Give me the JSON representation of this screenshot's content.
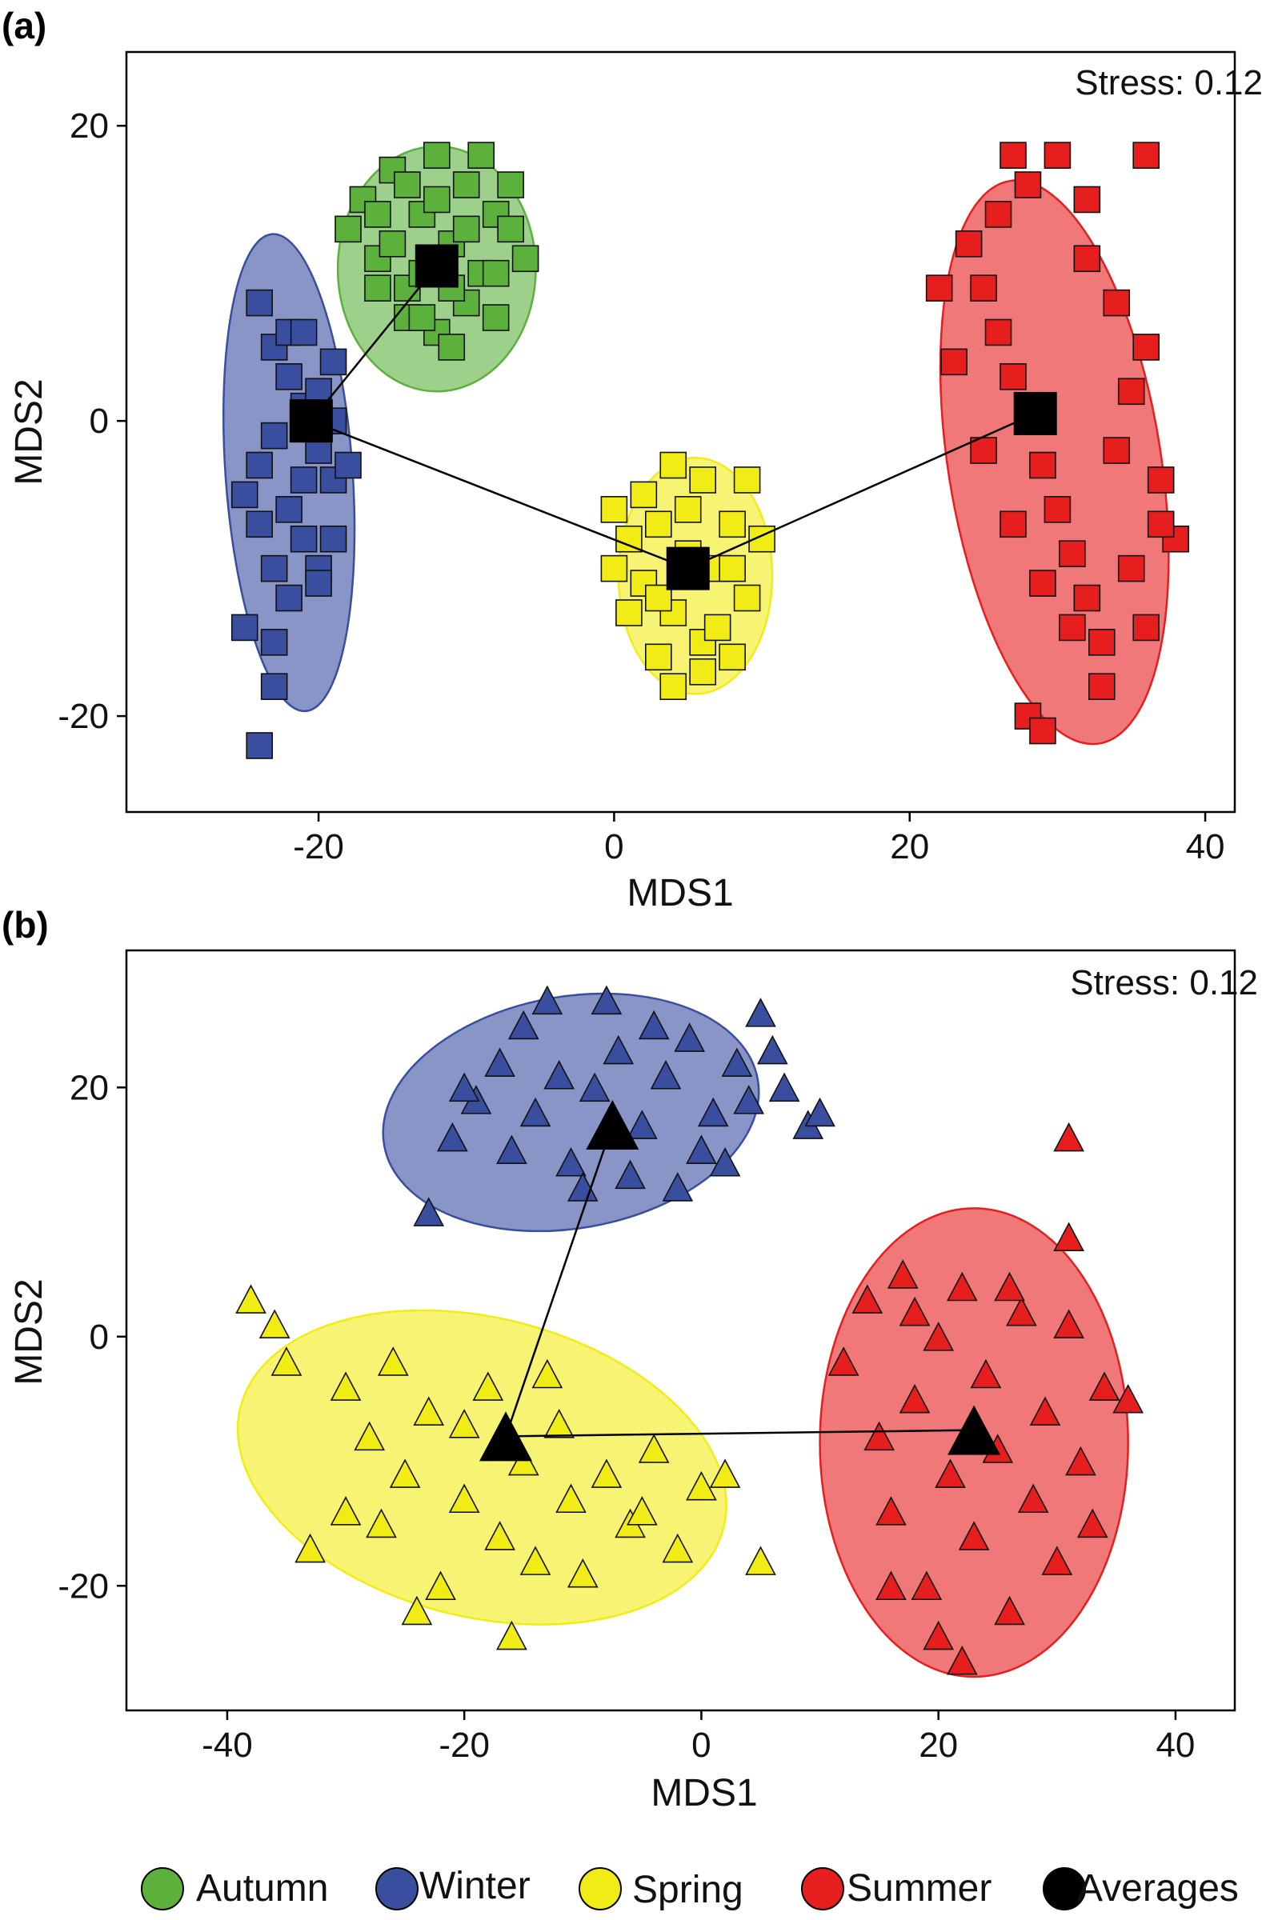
{
  "chart_data": [
    {
      "panel": "(a)",
      "type": "scatter",
      "marker": "square",
      "stress_text": "Stress: 0.12",
      "xlabel": "MDS1",
      "ylabel": "MDS2",
      "xlim": [
        -33,
        42
      ],
      "ylim": [
        -26.5,
        25
      ],
      "xticks": [
        -20,
        0,
        20,
        40
      ],
      "yticks": [
        -20,
        0,
        20
      ],
      "series": [
        {
          "name": "Autumn",
          "color": "#5cb03c",
          "ellipse": {
            "cx": -12,
            "cy": 10.3,
            "rx": 6.7,
            "ry": 8.3,
            "angle": 0
          },
          "points": [
            [
              -18,
              13
            ],
            [
              -17,
              15
            ],
            [
              -16,
              11
            ],
            [
              -15,
              17
            ],
            [
              -14,
              9
            ],
            [
              -13,
              14
            ],
            [
              -12,
              18
            ],
            [
              -11,
              12
            ],
            [
              -10,
              16
            ],
            [
              -9,
              10
            ],
            [
              -8,
              14
            ],
            [
              -7,
              13
            ],
            [
              -6,
              11
            ],
            [
              -14,
              7
            ],
            [
              -12,
              6
            ],
            [
              -10,
              8
            ],
            [
              -8,
              7
            ],
            [
              -16,
              14
            ],
            [
              -9,
              18
            ],
            [
              -11,
              5
            ],
            [
              -13,
              10
            ],
            [
              -15,
              12
            ],
            [
              -7,
              16
            ],
            [
              -10,
              13
            ],
            [
              -12,
              15
            ],
            [
              -14,
              16
            ],
            [
              -16,
              9
            ],
            [
              -8,
              10
            ],
            [
              -11,
              9
            ],
            [
              -13,
              7
            ]
          ]
        },
        {
          "name": "Winter",
          "color": "#3a4ea0",
          "ellipse": {
            "cx": -22,
            "cy": -3.5,
            "rx": 4.3,
            "ry": 16.2,
            "angle": -4
          },
          "points": [
            [
              -24,
              8
            ],
            [
              -23,
              5
            ],
            [
              -22,
              3
            ],
            [
              -21,
              1
            ],
            [
              -20,
              -2
            ],
            [
              -19,
              -4
            ],
            [
              -23,
              -1
            ],
            [
              -22,
              -6
            ],
            [
              -21,
              -8
            ],
            [
              -20,
              -10
            ],
            [
              -24,
              -3
            ],
            [
              -23,
              -10
            ],
            [
              -22,
              -12
            ],
            [
              -21,
              -4
            ],
            [
              -20,
              2
            ],
            [
              -19,
              4
            ],
            [
              -25,
              -5
            ],
            [
              -24,
              -7
            ],
            [
              -18,
              -3
            ],
            [
              -19,
              -8
            ],
            [
              -22,
              6
            ],
            [
              -25,
              -14
            ],
            [
              -23,
              -15
            ],
            [
              -23,
              -18
            ],
            [
              -24,
              -22
            ],
            [
              -20,
              -11
            ],
            [
              -21,
              6
            ],
            [
              -19,
              0
            ]
          ]
        },
        {
          "name": "Spring",
          "color": "#f2ec16",
          "ellipse": {
            "cx": 5.5,
            "cy": -10.5,
            "rx": 5.2,
            "ry": 8,
            "angle": 0
          },
          "points": [
            [
              0,
              -6
            ],
            [
              1,
              -8
            ],
            [
              2,
              -11
            ],
            [
              3,
              -7
            ],
            [
              4,
              -13
            ],
            [
              5,
              -9
            ],
            [
              6,
              -15
            ],
            [
              7,
              -10
            ],
            [
              8,
              -7
            ],
            [
              9,
              -12
            ],
            [
              10,
              -8
            ],
            [
              3,
              -16
            ],
            [
              4,
              -18
            ],
            [
              6,
              -17
            ],
            [
              1,
              -13
            ],
            [
              2,
              -5
            ],
            [
              7,
              -14
            ],
            [
              8,
              -16
            ],
            [
              5,
              -6
            ],
            [
              9,
              -4
            ],
            [
              0,
              -10
            ],
            [
              4,
              -3
            ],
            [
              6,
              -4
            ],
            [
              3,
              -12
            ],
            [
              8,
              -10
            ]
          ]
        },
        {
          "name": "Summer",
          "color": "#e61e1e",
          "ellipse": {
            "cx": 29.8,
            "cy": -2.8,
            "rx": 7.2,
            "ry": 19.3,
            "angle": -9
          },
          "points": [
            [
              24,
              12
            ],
            [
              25,
              9
            ],
            [
              26,
              6
            ],
            [
              27,
              3
            ],
            [
              28,
              0
            ],
            [
              29,
              -3
            ],
            [
              30,
              -6
            ],
            [
              31,
              -9
            ],
            [
              32,
              -12
            ],
            [
              33,
              -15
            ],
            [
              34,
              -2
            ],
            [
              35,
              2
            ],
            [
              36,
              5
            ],
            [
              37,
              -4
            ],
            [
              38,
              -8
            ],
            [
              26,
              14
            ],
            [
              28,
              16
            ],
            [
              30,
              18
            ],
            [
              32,
              11
            ],
            [
              34,
              8
            ],
            [
              25,
              -2
            ],
            [
              27,
              -7
            ],
            [
              29,
              -11
            ],
            [
              31,
              -14
            ],
            [
              33,
              -18
            ],
            [
              28,
              -20
            ],
            [
              29,
              -21
            ],
            [
              36,
              -14
            ],
            [
              22,
              9
            ],
            [
              23,
              4
            ],
            [
              35,
              -10
            ],
            [
              27,
              18
            ],
            [
              36,
              18
            ],
            [
              32,
              15
            ],
            [
              37,
              -7
            ]
          ]
        }
      ],
      "averages": {
        "name": "Averages",
        "color": "#000000",
        "points": [
          [
            -12,
            10.5
          ],
          [
            -20.5,
            0
          ],
          [
            5,
            -10
          ],
          [
            28.5,
            0.5
          ]
        ],
        "links": [
          [
            0,
            1
          ],
          [
            1,
            2
          ],
          [
            2,
            3
          ]
        ]
      }
    },
    {
      "panel": "(b)",
      "type": "scatter",
      "marker": "triangle",
      "stress_text": "Stress: 0.12",
      "xlabel": "MDS1",
      "ylabel": "MDS2",
      "xlim": [
        -48.5,
        45
      ],
      "ylim": [
        -30,
        31
      ],
      "xticks": [
        -40,
        -20,
        0,
        20,
        40
      ],
      "yticks": [
        -20,
        0,
        20
      ],
      "series": [
        {
          "name": "Winter",
          "color": "#3a4ea0",
          "ellipse": {
            "cx": -11,
            "cy": 18,
            "rx": 16,
            "ry": 9.3,
            "angle": -10
          },
          "points": [
            [
              -23,
              10
            ],
            [
              -21,
              16
            ],
            [
              -19,
              19
            ],
            [
              -17,
              22
            ],
            [
              -15,
              25
            ],
            [
              -13,
              27
            ],
            [
              -11,
              14
            ],
            [
              -9,
              20
            ],
            [
              -7,
              23
            ],
            [
              -5,
              17
            ],
            [
              -3,
              21
            ],
            [
              -1,
              24
            ],
            [
              1,
              18
            ],
            [
              3,
              22
            ],
            [
              5,
              26
            ],
            [
              7,
              20
            ],
            [
              9,
              17
            ],
            [
              10,
              18
            ],
            [
              -20,
              20
            ],
            [
              -16,
              15
            ],
            [
              -12,
              21
            ],
            [
              -8,
              27
            ],
            [
              -4,
              25
            ],
            [
              0,
              15
            ],
            [
              4,
              19
            ],
            [
              6,
              23
            ],
            [
              -14,
              18
            ],
            [
              -10,
              12
            ],
            [
              -6,
              13
            ],
            [
              -2,
              12
            ],
            [
              2,
              14
            ]
          ]
        },
        {
          "name": "Spring",
          "color": "#f2ec16",
          "ellipse": {
            "cx": -18.5,
            "cy": -10.5,
            "rx": 21,
            "ry": 12,
            "angle": 14
          },
          "points": [
            [
              -38,
              3
            ],
            [
              -36,
              1
            ],
            [
              -35,
              -2
            ],
            [
              -33,
              -17
            ],
            [
              -30,
              -4
            ],
            [
              -28,
              -8
            ],
            [
              -27,
              -15
            ],
            [
              -25,
              -11
            ],
            [
              -23,
              -6
            ],
            [
              -22,
              -20
            ],
            [
              -20,
              -13
            ],
            [
              -18,
              -4
            ],
            [
              -17,
              -16
            ],
            [
              -15,
              -10
            ],
            [
              -14,
              -18
            ],
            [
              -12,
              -7
            ],
            [
              -11,
              -13
            ],
            [
              -10,
              -19
            ],
            [
              -8,
              -11
            ],
            [
              -6,
              -15
            ],
            [
              -4,
              -9
            ],
            [
              -2,
              -17
            ],
            [
              0,
              -12
            ],
            [
              2,
              -11
            ],
            [
              5,
              -18
            ],
            [
              -16,
              -24
            ],
            [
              -24,
              -22
            ],
            [
              -30,
              -14
            ],
            [
              -26,
              -2
            ],
            [
              -20,
              -7
            ],
            [
              -13,
              -3
            ],
            [
              -5,
              -14
            ]
          ]
        },
        {
          "name": "Summer",
          "color": "#e61e1e",
          "ellipse": {
            "cx": 23,
            "cy": -8.5,
            "rx": 13,
            "ry": 18.8,
            "angle": 0
          },
          "points": [
            [
              12,
              -2
            ],
            [
              14,
              3
            ],
            [
              15,
              -8
            ],
            [
              16,
              -14
            ],
            [
              17,
              5
            ],
            [
              18,
              -5
            ],
            [
              19,
              -20
            ],
            [
              20,
              0
            ],
            [
              21,
              -11
            ],
            [
              22,
              4
            ],
            [
              23,
              -16
            ],
            [
              24,
              -3
            ],
            [
              25,
              -9
            ],
            [
              26,
              -22
            ],
            [
              27,
              2
            ],
            [
              28,
              -13
            ],
            [
              29,
              -6
            ],
            [
              30,
              -18
            ],
            [
              31,
              1
            ],
            [
              32,
              -10
            ],
            [
              33,
              -15
            ],
            [
              34,
              -4
            ],
            [
              36,
              -5
            ],
            [
              31,
              16
            ],
            [
              31,
              8
            ],
            [
              18,
              2
            ],
            [
              20,
              -24
            ],
            [
              22,
              -26
            ],
            [
              16,
              -20
            ],
            [
              26,
              4
            ]
          ]
        }
      ],
      "averages": {
        "name": "Averages",
        "color": "#000000",
        "points": [
          [
            -7.5,
            17
          ],
          [
            -16.5,
            -8
          ],
          [
            23,
            -7.5
          ]
        ],
        "links": [
          [
            0,
            1
          ],
          [
            1,
            2
          ]
        ]
      }
    }
  ],
  "legend": [
    {
      "label": "Autumn",
      "color": "#5cb03c"
    },
    {
      "label": "Winter",
      "color": "#3a4ea0"
    },
    {
      "label": "Spring",
      "color": "#f2ec16"
    },
    {
      "label": "Summer",
      "color": "#e61e1e"
    },
    {
      "label": "Averages",
      "color": "#000000"
    }
  ]
}
